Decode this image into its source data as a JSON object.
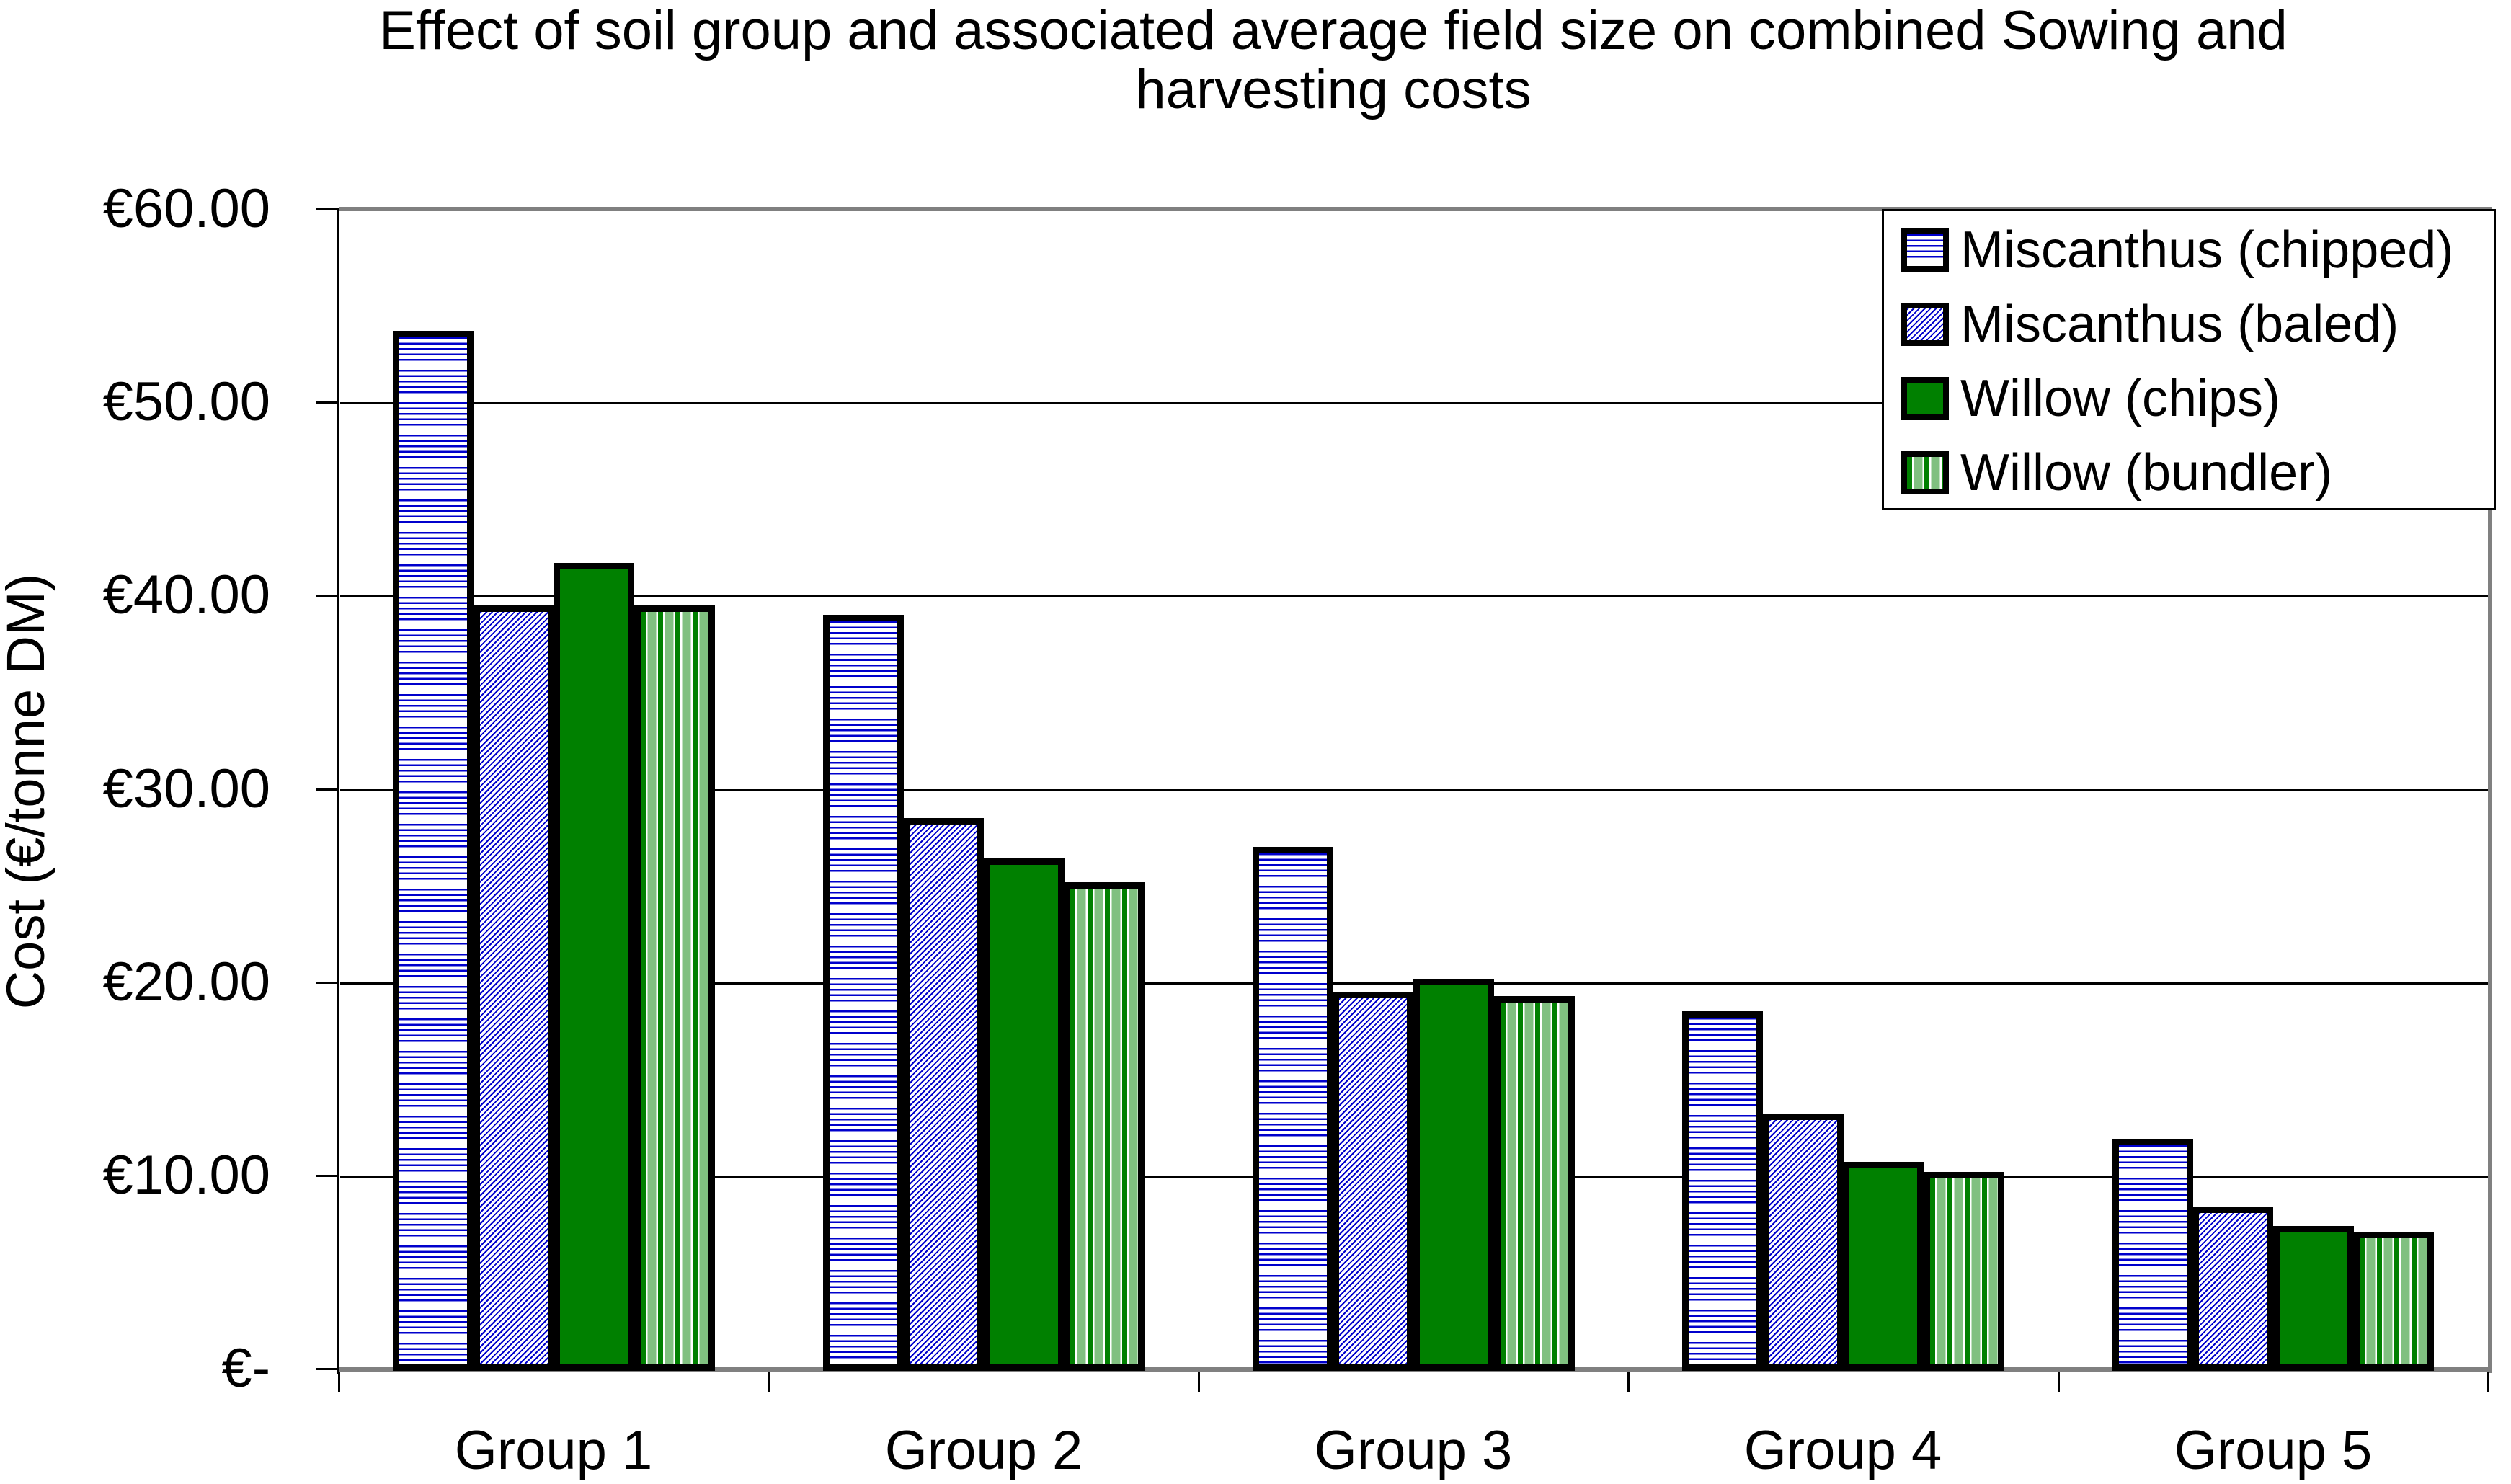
{
  "title": {
    "full": "Effect of soil group and associated average field size on combined Sowing and harvesting costs",
    "lines": [
      "Effect of soil group and associated average field size on combined Sowing and",
      "harvesting costs"
    ]
  },
  "y_axis": {
    "title": "Cost (€/tonne DM)",
    "tick_labels": [
      "€-",
      "€10.00",
      "€20.00",
      "€30.00",
      "€40.00",
      "€50.00",
      "€60.00"
    ]
  },
  "x_axis": {
    "categories": [
      "Group 1",
      "Group 2",
      "Group 3",
      "Group 4",
      "Group 5"
    ]
  },
  "legend": {
    "items": [
      {
        "label": "Miscanthus (chipped)",
        "pattern": "ledger-blue"
      },
      {
        "label": "Miscanthus (baled)",
        "pattern": "diagonal-blue"
      },
      {
        "label": "Willow (chips)",
        "pattern": "solid-green"
      },
      {
        "label": "Willow (bundler)",
        "pattern": "vertical-green"
      }
    ]
  },
  "colors": {
    "pattern_blue": "#0000CC",
    "pattern_green": "#008000",
    "pattern_light_green": "#80C080",
    "plot_border_gray": "#808080",
    "gridline_black": "#000000"
  },
  "chart_data": {
    "type": "bar",
    "title": "Effect of soil group and associated average field size on combined Sowing and harvesting costs",
    "xlabel": "",
    "ylabel": "Cost (€/tonne DM)",
    "categories": [
      "Group 1",
      "Group 2",
      "Group 3",
      "Group 4",
      "Group 5"
    ],
    "series": [
      {
        "name": "Miscanthus (chipped)",
        "pattern": "ledger-blue",
        "values": [
          53.8,
          39.1,
          27.1,
          18.6,
          12.0
        ]
      },
      {
        "name": "Miscanthus (baled)",
        "pattern": "diagonal-blue",
        "values": [
          39.6,
          28.6,
          19.6,
          13.3,
          8.5
        ]
      },
      {
        "name": "Willow (chips)",
        "pattern": "solid-green",
        "values": [
          41.8,
          26.5,
          20.3,
          10.8,
          7.5
        ]
      },
      {
        "name": "Willow (bundler)",
        "pattern": "vertical-green",
        "values": [
          39.6,
          25.3,
          19.4,
          10.3,
          7.2
        ]
      }
    ],
    "ylim": [
      0,
      60
    ],
    "ytick_step": 10,
    "ytick_labels": [
      "€-",
      "€10.00",
      "€20.00",
      "€30.00",
      "€40.00",
      "€50.00",
      "€60.00"
    ],
    "grid": true,
    "legend_position": "top-right"
  }
}
